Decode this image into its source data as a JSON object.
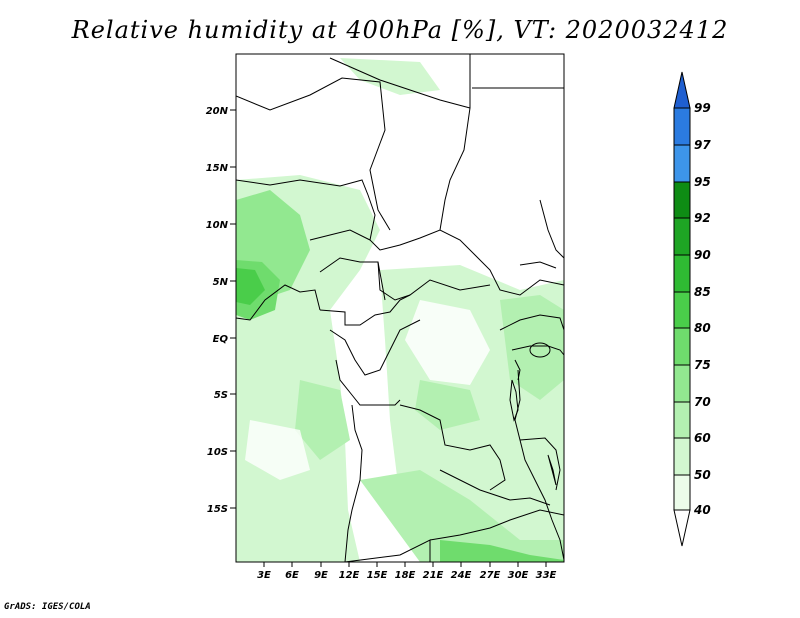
{
  "title": "Relative humidity at 400hPa [%], VT: 2020032412",
  "footer": "GrADS: IGES/COLA",
  "map": {
    "lat_labels": [
      "20N",
      "15N",
      "10N",
      "5N",
      "EQ",
      "5S",
      "10S",
      "15S"
    ],
    "lon_labels": [
      "3E",
      "6E",
      "9E",
      "12E",
      "15E",
      "18E",
      "21E",
      "24E",
      "27E",
      "30E",
      "33E"
    ]
  },
  "colorbar": {
    "levels": [
      "99",
      "97",
      "95",
      "92",
      "90",
      "85",
      "80",
      "75",
      "70",
      "60",
      "50",
      "40"
    ],
    "colors": {
      "gt99": "#1f5fd0",
      "97_99": "#2b7be0",
      "95_97": "#3d95ea",
      "92_95": "#0e8c14",
      "90_92": "#1ea524",
      "85_90": "#2fbb33",
      "80_85": "#4acd4a",
      "75_80": "#6fdc6d",
      "70_75": "#92e890",
      "60_70": "#b3f0b1",
      "50_60": "#d2f7d0",
      "40_50": "#ecfcea",
      "lt40": "#ffffff"
    }
  }
}
